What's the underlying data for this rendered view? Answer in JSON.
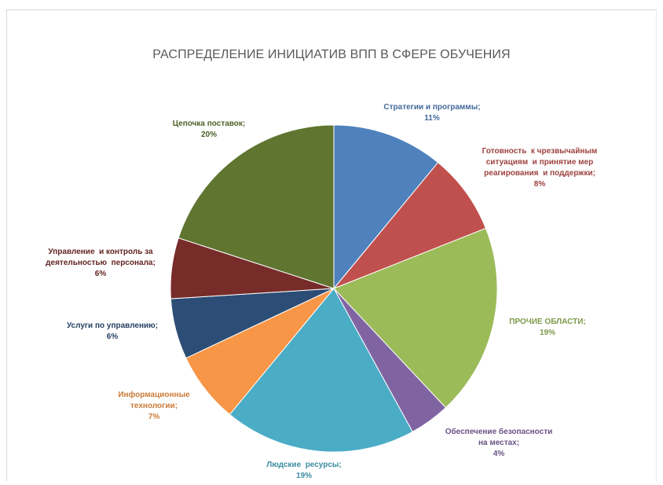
{
  "chart_data": {
    "type": "pie",
    "title": "РАСПРЕДЕЛЕНИЕ ИНИЦИАТИВ ВПП В СФЕРЕ ОБУЧЕНИЯ",
    "slices": [
      {
        "label_lines": [
          "Стратегии и программы;"
        ],
        "pct_label": "11%",
        "value": 11,
        "color": "#4f81bd"
      },
      {
        "label_lines": [
          "Готовность  к чрезвычайным",
          "ситуациям  и принятие мер",
          "реагирования  и поддержки;"
        ],
        "pct_label": "8%",
        "value": 8,
        "color": "#c0504d"
      },
      {
        "label_lines": [
          "ПРОЧИЕ ОБЛАСТИ;"
        ],
        "pct_label": "19%",
        "value": 19,
        "color": "#9bbb59"
      },
      {
        "label_lines": [
          "Обеспечение безопасности",
          "на местах;"
        ],
        "pct_label": "4%",
        "value": 4,
        "color": "#8064a2"
      },
      {
        "label_lines": [
          "Людские  ресурсы;"
        ],
        "pct_label": "19%",
        "value": 19,
        "color": "#4bacc6"
      },
      {
        "label_lines": [
          "Информационные",
          "технологии;"
        ],
        "pct_label": "7%",
        "value": 7,
        "color": "#f79646"
      },
      {
        "label_lines": [
          "Услуги по управлению;"
        ],
        "pct_label": "6%",
        "value": 6,
        "color": "#2c4d75"
      },
      {
        "label_lines": [
          "Управление  и контроль за",
          "деятельностью  персонала;"
        ],
        "pct_label": "6%",
        "value": 6,
        "color": "#772c2a"
      },
      {
        "label_lines": [
          "Цепочка поставок;"
        ],
        "pct_label": "20%",
        "value": 20,
        "color": "#5f7530"
      }
    ]
  }
}
